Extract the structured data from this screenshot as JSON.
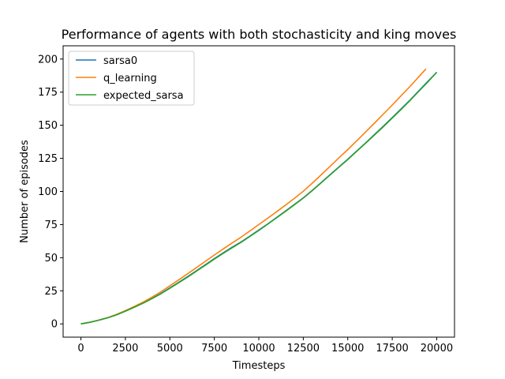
{
  "chart_data": {
    "type": "line",
    "title": "Performance of agents with both stochasticity and king moves",
    "xlabel": "Timesteps",
    "ylabel": "Number of episodes",
    "xlim": [
      -1000,
      21000
    ],
    "ylim": [
      -10,
      210
    ],
    "xticks": [
      0,
      2500,
      5000,
      7500,
      10000,
      12500,
      15000,
      17500,
      20000
    ],
    "yticks": [
      0,
      25,
      50,
      75,
      100,
      125,
      150,
      175,
      200
    ],
    "legend_position": "upper-left",
    "grid": false,
    "series": [
      {
        "name": "sarsa0",
        "color": "#1f77b4",
        "x": [
          0,
          500,
          1000,
          1500,
          2000,
          2500,
          3000,
          3500,
          4000,
          4500,
          5000,
          5500,
          6000,
          6500,
          7000,
          7500,
          8000,
          8500,
          9000,
          9500,
          10000,
          10500,
          11000,
          11500,
          12000,
          12500,
          13000,
          13500,
          14000,
          14500,
          15000,
          15500,
          16000,
          16500,
          17000,
          17500,
          18000,
          18500,
          19000,
          19500,
          20000
        ],
        "y": [
          0,
          1.2,
          2.8,
          4.6,
          6.9,
          9.7,
          12.7,
          15.8,
          19.3,
          23,
          27.2,
          31.4,
          35.7,
          40.2,
          44.8,
          49.3,
          53.7,
          57.9,
          61.9,
          66.3,
          70.9,
          75.5,
          80.3,
          85.2,
          90.2,
          95.2,
          100.8,
          106.7,
          112.6,
          118.5,
          124.3,
          130.5,
          136.6,
          142.9,
          149.3,
          155.8,
          162.4,
          169,
          176.1,
          183.1,
          190
        ]
      },
      {
        "name": "q_learning",
        "color": "#ff7f0e",
        "x": [
          0,
          500,
          1000,
          1500,
          2000,
          2500,
          3000,
          3500,
          4000,
          4500,
          5000,
          5500,
          6000,
          6500,
          7000,
          7500,
          8000,
          8500,
          9000,
          9500,
          10000,
          10500,
          11000,
          11500,
          12000,
          12500,
          13000,
          13500,
          14000,
          14500,
          15000,
          15500,
          16000,
          16500,
          17000,
          17500,
          18000,
          18500,
          19000,
          19400
        ],
        "y": [
          0,
          1.2,
          2.8,
          4.7,
          7.2,
          10.1,
          13.2,
          16.5,
          20.2,
          24.3,
          28.8,
          33.3,
          37.9,
          42.6,
          47.3,
          52,
          56.6,
          61.1,
          65.5,
          70.2,
          75,
          79.8,
          84.7,
          89.7,
          94.8,
          100.2,
          106.2,
          112.5,
          118.9,
          125.4,
          131.6,
          138.2,
          144.9,
          151.6,
          158.4,
          165.3,
          172.3,
          179.3,
          186.7,
          192.6
        ]
      },
      {
        "name": "expected_sarsa",
        "color": "#2ca02c",
        "x": [
          0,
          500,
          1000,
          1500,
          2000,
          2500,
          3000,
          3500,
          4000,
          4500,
          5000,
          5500,
          6000,
          6500,
          7000,
          7500,
          8000,
          8500,
          9000,
          9500,
          10000,
          10500,
          11000,
          11500,
          12000,
          12500,
          13000,
          13500,
          14000,
          14500,
          15000,
          15500,
          16000,
          16500,
          17000,
          17500,
          18000,
          18500,
          19000,
          19500,
          20000
        ],
        "y": [
          0,
          1.2,
          2.8,
          4.6,
          6.9,
          9.6,
          12.6,
          15.7,
          19.1,
          22.8,
          26.9,
          31.1,
          35.4,
          39.9,
          44.4,
          48.9,
          53.3,
          57.5,
          61.6,
          66,
          70.6,
          75.3,
          80.1,
          85,
          90,
          95,
          100.6,
          106.5,
          112.4,
          118.3,
          124.1,
          130.3,
          136.4,
          142.6,
          148.9,
          155.4,
          162,
          168.7,
          175.7,
          182.7,
          190
        ]
      }
    ]
  }
}
